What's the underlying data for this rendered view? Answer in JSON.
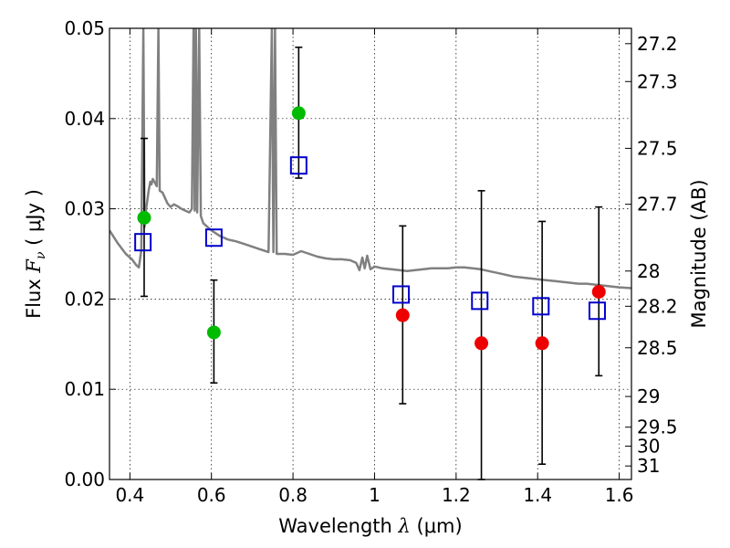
{
  "chart_data": {
    "type": "scatter",
    "xlabel": {
      "prefix": "Wavelength  ",
      "symbol": "λ",
      "unit": " (μm)"
    },
    "ylabel": {
      "prefix": "Flux  ",
      "symbol": "F",
      "subscript": "ν",
      "unit": "  ( μJy )"
    },
    "y2label": "Magnitude (AB)",
    "xlim": [
      0.35,
      1.63
    ],
    "ylim": [
      0.0,
      0.05
    ],
    "grid": true,
    "x_ticks": [
      0.4,
      0.6,
      0.8,
      1.0,
      1.2,
      1.4,
      1.6
    ],
    "x_tick_labels": [
      "0.4",
      "0.6",
      "0.8",
      "1",
      "1.2",
      "1.4",
      "1.6"
    ],
    "y_ticks": [
      0.0,
      0.01,
      0.02,
      0.03,
      0.04,
      0.05
    ],
    "y_tick_labels": [
      "0.00",
      "0.01",
      "0.02",
      "0.03",
      "0.04",
      "0.05"
    ],
    "y2_ticks": [
      {
        "label": "27.2",
        "flux": 0.0483
      },
      {
        "label": "27.3",
        "flux": 0.0441
      },
      {
        "label": "27.5",
        "flux": 0.0367
      },
      {
        "label": "27.7",
        "flux": 0.0305
      },
      {
        "label": "28",
        "flux": 0.0231
      },
      {
        "label": "28.2",
        "flux": 0.0192
      },
      {
        "label": "28.5",
        "flux": 0.0146
      },
      {
        "label": "29",
        "flux": 0.0092
      },
      {
        "label": "29.5",
        "flux": 0.0058
      },
      {
        "label": "30",
        "flux": 0.0037
      },
      {
        "label": "31",
        "flux": 0.0015
      }
    ],
    "colors": {
      "green": "#00bb00",
      "red": "#ee0000",
      "blue": "#0000cc",
      "model": "#808080",
      "errorbar": "#000000"
    },
    "series": [
      {
        "kind": "observed-green",
        "points": [
          {
            "x": 0.435,
            "y": 0.029,
            "err_low": 0.0203,
            "err_high": 0.0378
          },
          {
            "x": 0.606,
            "y": 0.0163,
            "err_low": 0.0107,
            "err_high": 0.0221
          },
          {
            "x": 0.814,
            "y": 0.0406,
            "err_low": 0.0334,
            "err_high": 0.0479
          }
        ]
      },
      {
        "kind": "observed-red",
        "points": [
          {
            "x": 1.069,
            "y": 0.0182,
            "err_low": 0.0084,
            "err_high": 0.0281
          },
          {
            "x": 1.262,
            "y": 0.0151,
            "err_low": 0.0,
            "err_high": 0.032
          },
          {
            "x": 1.411,
            "y": 0.0151,
            "err_low": 0.0017,
            "err_high": 0.0286
          },
          {
            "x": 1.55,
            "y": 0.0208,
            "err_low": 0.0115,
            "err_high": 0.0302
          }
        ]
      },
      {
        "kind": "model-photometry-blue",
        "points": [
          {
            "x": 0.432,
            "y": 0.0263
          },
          {
            "x": 0.606,
            "y": 0.0268
          },
          {
            "x": 0.814,
            "y": 0.0348
          },
          {
            "x": 1.065,
            "y": 0.0205
          },
          {
            "x": 1.258,
            "y": 0.0198
          },
          {
            "x": 1.408,
            "y": 0.0192
          },
          {
            "x": 1.546,
            "y": 0.0187
          }
        ]
      },
      {
        "kind": "model-spectrum",
        "points": [
          [
            0.35,
            0.0276
          ],
          [
            0.37,
            0.0262
          ],
          [
            0.39,
            0.025
          ],
          [
            0.405,
            0.0244
          ],
          [
            0.415,
            0.0238
          ],
          [
            0.422,
            0.0235
          ],
          [
            0.428,
            0.0254
          ],
          [
            0.433,
            0.05
          ],
          [
            0.436,
            0.028
          ],
          [
            0.44,
            0.03
          ],
          [
            0.446,
            0.032
          ],
          [
            0.45,
            0.033
          ],
          [
            0.453,
            0.0327
          ],
          [
            0.456,
            0.0333
          ],
          [
            0.46,
            0.033
          ],
          [
            0.466,
            0.0325
          ],
          [
            0.47,
            0.05
          ],
          [
            0.473,
            0.032
          ],
          [
            0.48,
            0.0318
          ],
          [
            0.486,
            0.0312
          ],
          [
            0.492,
            0.0306
          ],
          [
            0.5,
            0.0302
          ],
          [
            0.508,
            0.0305
          ],
          [
            0.516,
            0.0303
          ],
          [
            0.526,
            0.03
          ],
          [
            0.536,
            0.0298
          ],
          [
            0.546,
            0.0296
          ],
          [
            0.552,
            0.03
          ],
          [
            0.556,
            0.05
          ],
          [
            0.559,
            0.0298
          ],
          [
            0.562,
            0.05
          ],
          [
            0.565,
            0.0296
          ],
          [
            0.57,
            0.05
          ],
          [
            0.574,
            0.0292
          ],
          [
            0.58,
            0.0284
          ],
          [
            0.6,
            0.0276
          ],
          [
            0.62,
            0.027
          ],
          [
            0.64,
            0.0266
          ],
          [
            0.66,
            0.0264
          ],
          [
            0.68,
            0.0261
          ],
          [
            0.7,
            0.0258
          ],
          [
            0.72,
            0.0255
          ],
          [
            0.74,
            0.0252
          ],
          [
            0.748,
            0.05
          ],
          [
            0.752,
            0.0252
          ],
          [
            0.756,
            0.05
          ],
          [
            0.76,
            0.025
          ],
          [
            0.78,
            0.025
          ],
          [
            0.8,
            0.0249
          ],
          [
            0.82,
            0.0253
          ],
          [
            0.84,
            0.025
          ],
          [
            0.86,
            0.0247
          ],
          [
            0.88,
            0.0245
          ],
          [
            0.9,
            0.0244
          ],
          [
            0.92,
            0.0244
          ],
          [
            0.94,
            0.0243
          ],
          [
            0.955,
            0.024
          ],
          [
            0.963,
            0.0232
          ],
          [
            0.97,
            0.0246
          ],
          [
            0.976,
            0.0234
          ],
          [
            0.982,
            0.0248
          ],
          [
            0.99,
            0.0233
          ],
          [
            1.0,
            0.0236
          ],
          [
            1.02,
            0.0234
          ],
          [
            1.04,
            0.0233
          ],
          [
            1.06,
            0.0232
          ],
          [
            1.08,
            0.0231
          ],
          [
            1.1,
            0.0232
          ],
          [
            1.12,
            0.0233
          ],
          [
            1.14,
            0.0234
          ],
          [
            1.16,
            0.0234
          ],
          [
            1.18,
            0.0234
          ],
          [
            1.2,
            0.0235
          ],
          [
            1.22,
            0.0235
          ],
          [
            1.24,
            0.0234
          ],
          [
            1.26,
            0.0233
          ],
          [
            1.28,
            0.0231
          ],
          [
            1.3,
            0.0229
          ],
          [
            1.32,
            0.0227
          ],
          [
            1.34,
            0.0225
          ],
          [
            1.36,
            0.0224
          ],
          [
            1.38,
            0.0223
          ],
          [
            1.4,
            0.0222
          ],
          [
            1.42,
            0.0221
          ],
          [
            1.44,
            0.022
          ],
          [
            1.46,
            0.0219
          ],
          [
            1.48,
            0.0218
          ],
          [
            1.5,
            0.0217
          ],
          [
            1.52,
            0.0217
          ],
          [
            1.54,
            0.0216
          ],
          [
            1.56,
            0.0215
          ],
          [
            1.58,
            0.0214
          ],
          [
            1.6,
            0.0213
          ],
          [
            1.63,
            0.0212
          ]
        ]
      }
    ]
  }
}
